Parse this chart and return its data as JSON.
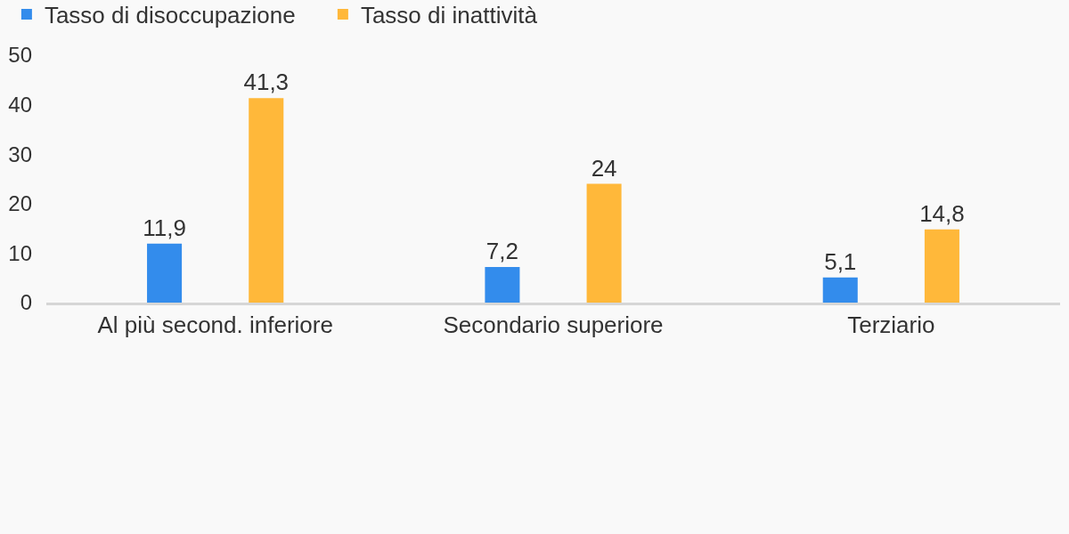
{
  "chart_data": {
    "type": "bar",
    "categories": [
      "Al più second. inferiore",
      "Secondario superiore",
      "Terziario"
    ],
    "series": [
      {
        "name": "Tasso di disoccupazione",
        "color": "#338cec",
        "values": [
          11.9,
          7.2,
          5.1
        ],
        "value_labels": [
          "11,9",
          "7,2",
          "5,1"
        ]
      },
      {
        "name": "Tasso di inattività",
        "color": "#ffb83a",
        "values": [
          41.3,
          24,
          14.8
        ],
        "value_labels": [
          "41,3",
          "24",
          "14,8"
        ]
      }
    ],
    "ylim": [
      0,
      50
    ],
    "yticks": [
      0,
      10,
      20,
      30,
      40,
      50
    ],
    "grid": false,
    "legend": "top left"
  }
}
